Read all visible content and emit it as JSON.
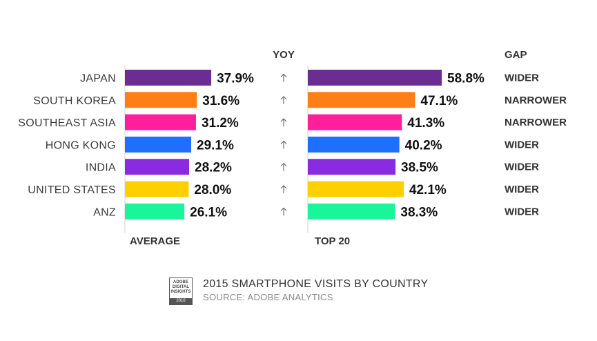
{
  "chart_data": {
    "type": "bar",
    "title": "2015 SMARTPHONE VISITS BY COUNTRY",
    "source": "SOURCE: ADOBE ANALYTICS",
    "categories": [
      "JAPAN",
      "SOUTH KOREA",
      "SOUTHEAST ASIA",
      "HONG KONG",
      "INDIA",
      "UNITED STATES",
      "ANZ"
    ],
    "series": [
      {
        "name": "AVERAGE",
        "values": [
          37.9,
          31.6,
          31.2,
          29.1,
          28.2,
          28.0,
          26.1
        ],
        "labels": [
          "37.9%",
          "31.6%",
          "31.2%",
          "29.1%",
          "28.2%",
          "28.0%",
          "26.1%"
        ]
      },
      {
        "name": "TOP 20",
        "values": [
          58.8,
          47.1,
          41.3,
          40.2,
          38.5,
          42.1,
          38.3
        ],
        "labels": [
          "58.8%",
          "47.1%",
          "41.3%",
          "40.2%",
          "38.5%",
          "42.1%",
          "38.3%"
        ]
      }
    ],
    "yoy_header": "YOY",
    "yoy": [
      "up",
      "up",
      "up",
      "up",
      "up",
      "up",
      "up"
    ],
    "gap_header": "GAP",
    "gap": [
      "WIDER",
      "NARROWER",
      "NARROWER",
      "WIDER",
      "WIDER",
      "WIDER",
      "WIDER"
    ],
    "colors": [
      "#6b2d91",
      "#ff7f17",
      "#ff1f9a",
      "#1f6fff",
      "#8a2be2",
      "#ffd000",
      "#19f59a"
    ],
    "grid": false,
    "legend": "none"
  },
  "logo": {
    "lines": [
      "ADOBE",
      "DIGITAL",
      "INSIGHTS"
    ],
    "year": "2016",
    "icon": "adobe-digital-insights-badge"
  }
}
